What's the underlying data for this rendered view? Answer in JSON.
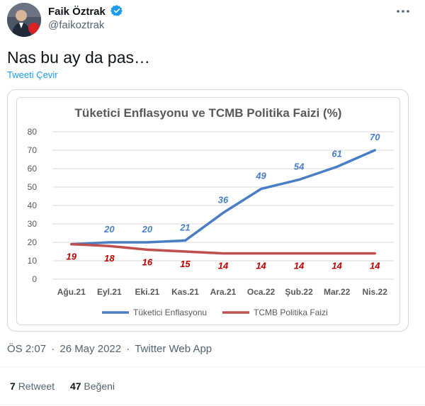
{
  "tweet": {
    "display_name": "Faik Öztrak",
    "handle": "@faikoztrak",
    "text": "Nas bu ay da pas…",
    "translate_label": "Tweeti Çevir",
    "time": "ÖS 2:07",
    "date": "26 May 2022",
    "source": "Twitter Web App",
    "meta_separator": "·",
    "retweet_count": "7",
    "retweet_label": "Retweet",
    "like_count": "47",
    "like_label": "Beğeni",
    "colors": {
      "link": "#1d9bf0",
      "verified": "#1d9bf0"
    },
    "icons": {
      "verified": "verified-badge-icon",
      "more": "more-options-icon"
    }
  },
  "chart_data": {
    "type": "line",
    "title": "Tüketici Enflasyonu ve TCMB Politika Faizi (%)",
    "categories": [
      "Ağu.21",
      "Eyl.21",
      "Eki.21",
      "Kas.21",
      "Ara.21",
      "Oca.22",
      "Şub.22",
      "Mar.22",
      "Nis.22"
    ],
    "ylim": [
      0,
      80
    ],
    "yticks": [
      0,
      10,
      20,
      30,
      40,
      50,
      60,
      70,
      80
    ],
    "grid": true,
    "legend_position": "bottom",
    "series": [
      {
        "name": "Tüketici Enflasyonu",
        "color": "#4a7ec4",
        "label_color": "#4a7ec4",
        "values": [
          19,
          20,
          20,
          21,
          36,
          49,
          54,
          61,
          70
        ],
        "labels": [
          "",
          "20",
          "20",
          "21",
          "36",
          "49",
          "54",
          "61",
          "70"
        ]
      },
      {
        "name": "TCMB Politika Faizi",
        "color": "#c0504d",
        "label_color": "#c00000",
        "values": [
          19,
          18,
          16,
          15,
          14,
          14,
          14,
          14,
          14
        ],
        "labels": [
          "19",
          "18",
          "16",
          "15",
          "14",
          "14",
          "14",
          "14",
          "14"
        ]
      }
    ]
  }
}
